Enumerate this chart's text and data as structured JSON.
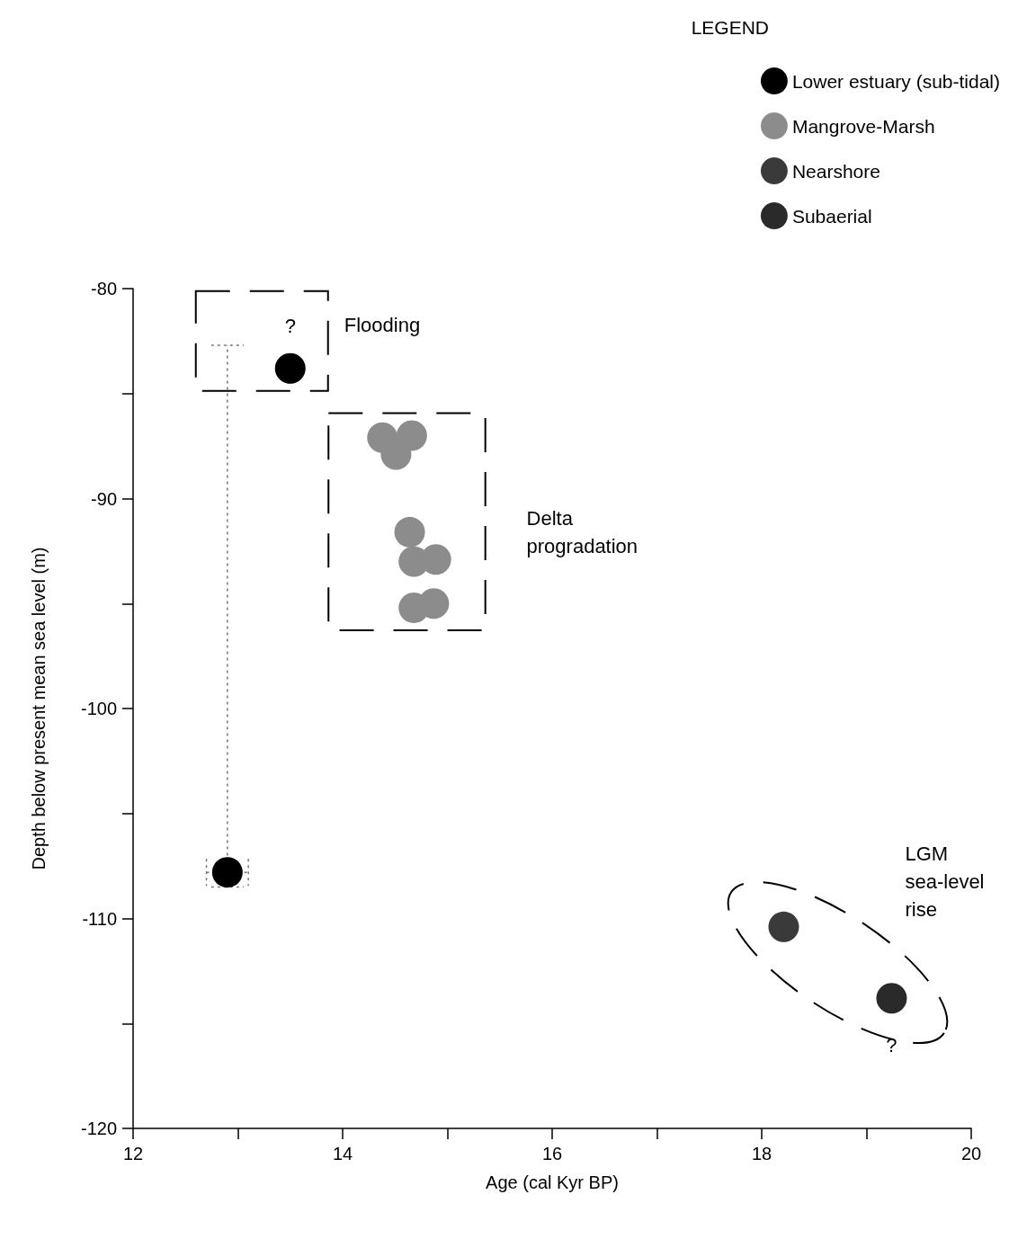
{
  "chart_data": {
    "type": "scatter",
    "xlabel": "Age (cal Kyr BP)",
    "ylabel": "Depth below present mean sea level (m)",
    "legend_title": "LEGEND",
    "legend": "top right",
    "grid": false,
    "marker": "circle",
    "xlim": [
      12,
      20
    ],
    "xticks": [
      12,
      {
        "value": 13,
        "label": null
      },
      14,
      {
        "value": 15,
        "label": null
      },
      16,
      {
        "value": 17,
        "label": null
      },
      18,
      {
        "value": 19,
        "label": null
      },
      20
    ],
    "ylim": [
      -120,
      -80
    ],
    "yticks": [
      -120,
      {
        "value": -115,
        "label": null
      },
      -110,
      {
        "value": -105,
        "label": null
      },
      -100,
      {
        "value": -95,
        "label": null
      },
      -90,
      {
        "value": -85,
        "label": null
      },
      -80
    ],
    "series": [
      {
        "name": "Lower estuary (sub-tidal)",
        "color": "#000000",
        "x": [
          13.5,
          12.9
        ],
        "values": [
          -83.8,
          -107.8
        ],
        "errors": [
          null,
          [
            -108.5,
            -82.7
          ]
        ],
        "xerrors": [
          null,
          [
            12.7,
            13.1
          ]
        ]
      },
      {
        "name": "Mangrove-Marsh",
        "color": "#8c8c8c",
        "x": [
          14.38,
          14.66,
          14.51,
          14.64,
          14.68,
          14.89,
          14.68,
          14.87
        ],
        "values": [
          -87.1,
          -87.0,
          -87.9,
          -91.6,
          -93.0,
          -92.9,
          -95.2,
          -95.0
        ]
      },
      {
        "name": "Nearshore",
        "color": "#3a3a3a",
        "x": [
          18.21
        ],
        "values": [
          -110.4
        ]
      },
      {
        "name": "Subaerial",
        "color": "#2a2a2a",
        "x": [
          19.24
        ],
        "values": [
          -113.8
        ]
      }
    ],
    "annotations": [
      "?",
      "Flooding",
      "Delta\nprogradation",
      "LGM\nsea-level\nrise",
      "?"
    ]
  }
}
